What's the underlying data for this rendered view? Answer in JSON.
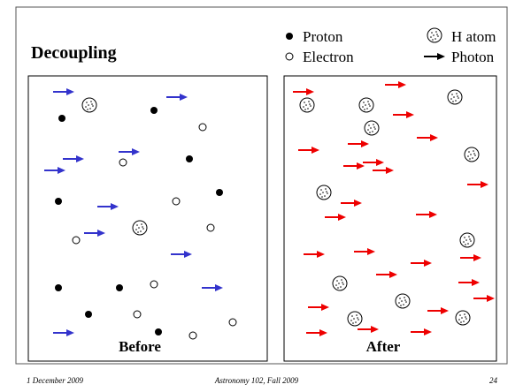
{
  "title": "Decoupling",
  "legend": {
    "proton": "Proton",
    "electron": "Electron",
    "h_atom": "H atom",
    "photon": "Photon"
  },
  "panels": {
    "before": "Before",
    "after": "After"
  },
  "footer": {
    "date": "1 December 2009",
    "course": "Astronomy 102, Fall 2009",
    "page": "24"
  }
}
